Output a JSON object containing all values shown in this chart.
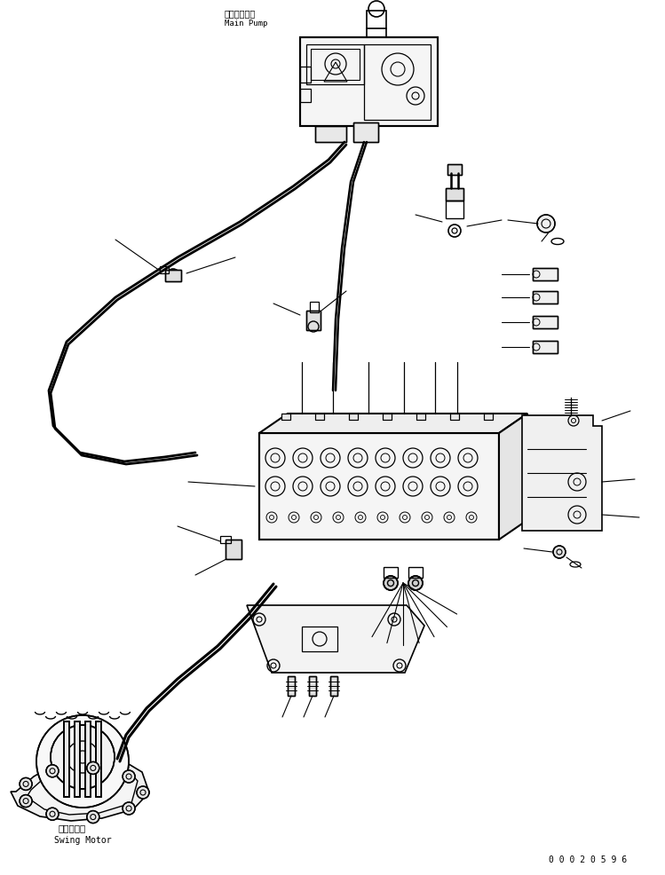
{
  "title": "",
  "bg_color": "#ffffff",
  "line_color": "#000000",
  "fig_width": 7.49,
  "fig_height": 9.86,
  "dpi": 100,
  "label_main_pump_jp": "メインポンプ",
  "label_main_pump_en": "Main Pump",
  "label_swing_motor_jp": "旋回モータ",
  "label_swing_motor_en": "Swing Motor",
  "part_number": "0 0 0 2 0 5 9 6"
}
